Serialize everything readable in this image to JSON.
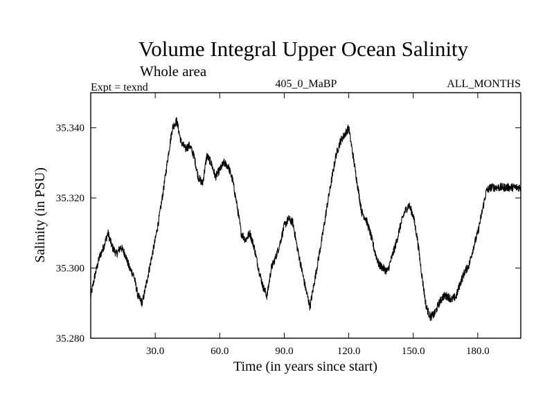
{
  "chart_data": {
    "type": "line",
    "title": "Volume Integral Upper Ocean Salinity",
    "subtitle": "Whole area",
    "experiment": "Expt = texnd",
    "run_id": "405_0_MaBP",
    "period": "ALL_MONTHS",
    "xlabel": "Time (in years since start)",
    "ylabel": "Salinity (in PSU)",
    "xlim": [
      0,
      200
    ],
    "ylim": [
      35.28,
      35.35
    ],
    "xticks": [
      30,
      60,
      90,
      120,
      150,
      180
    ],
    "xtick_labels": [
      "30.0",
      "60.0",
      "90.0",
      "120.0",
      "150.0",
      "180.0"
    ],
    "yticks": [
      35.28,
      35.3,
      35.32,
      35.34
    ],
    "ytick_labels": [
      "35.280",
      "35.300",
      "35.320",
      "35.340"
    ],
    "noise_amplitude": 0.0012,
    "series": [
      {
        "name": "Salinity",
        "color": "#000000",
        "x": [
          0,
          2,
          4,
          6,
          8,
          10,
          12,
          14,
          16,
          18,
          20,
          22,
          24,
          26,
          28,
          30,
          32,
          34,
          36,
          38,
          40,
          42,
          44,
          46,
          48,
          50,
          52,
          54,
          56,
          58,
          60,
          62,
          64,
          66,
          68,
          70,
          72,
          74,
          76,
          78,
          80,
          82,
          84,
          86,
          88,
          90,
          92,
          94,
          96,
          98,
          100,
          102,
          104,
          106,
          108,
          110,
          112,
          114,
          116,
          118,
          120,
          122,
          124,
          126,
          128,
          130,
          132,
          134,
          136,
          138,
          140,
          142,
          144,
          146,
          148,
          150,
          152,
          154,
          156,
          158,
          160,
          162,
          164,
          166,
          168,
          170,
          172,
          174,
          176,
          178,
          180,
          182,
          184,
          186,
          188,
          190,
          192,
          194,
          196,
          198,
          200
        ],
        "values": [
          35.292,
          35.298,
          35.303,
          35.306,
          35.31,
          35.306,
          35.304,
          35.306,
          35.304,
          35.3,
          35.298,
          35.292,
          35.29,
          35.296,
          35.302,
          35.308,
          35.315,
          35.323,
          35.332,
          35.34,
          35.342,
          35.336,
          35.334,
          35.335,
          35.332,
          35.326,
          35.324,
          35.332,
          35.33,
          35.326,
          35.328,
          35.33,
          35.329,
          35.325,
          35.318,
          35.31,
          35.308,
          35.31,
          35.306,
          35.3,
          35.295,
          35.292,
          35.3,
          35.303,
          35.307,
          35.312,
          35.314,
          35.313,
          35.306,
          35.3,
          35.294,
          35.289,
          35.296,
          35.303,
          35.31,
          35.318,
          35.325,
          35.332,
          35.336,
          35.338,
          35.34,
          35.332,
          35.324,
          35.316,
          35.314,
          35.31,
          35.305,
          35.301,
          35.3,
          35.299,
          35.303,
          35.307,
          35.312,
          35.316,
          35.318,
          35.315,
          35.308,
          35.298,
          35.289,
          35.286,
          35.287,
          35.29,
          35.292,
          35.292,
          35.291,
          35.292,
          35.296,
          35.299,
          35.301,
          35.306,
          35.31,
          35.316,
          35.322,
          35.323,
          35.323,
          35.323,
          35.323,
          35.323,
          35.323,
          35.323,
          35.323
        ]
      }
    ]
  }
}
